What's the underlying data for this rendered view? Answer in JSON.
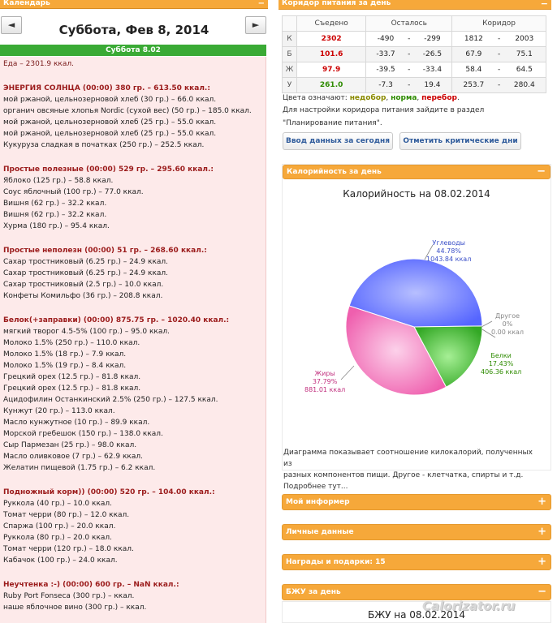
{
  "calendar": {
    "header": "Календарь",
    "collapse": "−",
    "prev": "◄",
    "next": "►",
    "date_title": "Суббота, Фев 8, 2014",
    "day_label": "Суббота 8.02"
  },
  "diary": {
    "total": "Еда – 2301.9 ккал.",
    "meals": [
      {
        "title": "ЭНЕРГИЯ СОЛНЦА (00:00) 380 гр. – 613.50 ккал.:",
        "items": [
          "мой ржаной, цельнозерновой хлеб (30 гр.) – 66.0 ккал.",
          "органич овсяные хлопья Nordic (сухой вес) (50 гр.) – 185.0 ккал.",
          "мой ржаной, цельнозерновой хлеб (25 гр.) – 55.0 ккал.",
          "мой ржаной, цельнозерновой хлеб (25 гр.) – 55.0 ккал.",
          "Кукуруза сладкая в початках (250 гр.) – 252.5 ккал."
        ]
      },
      {
        "title": "Простые полезные (00:00) 529 гр. – 295.60 ккал.:",
        "items": [
          "Яблоко (125 гр.) – 58.8 ккал.",
          "Соус яблочный (100 гр.) – 77.0 ккал.",
          "Вишня (62 гр.) – 32.2 ккал.",
          "Вишня (62 гр.) – 32.2 ккал.",
          "Хурма (180 гр.) – 95.4 ккал."
        ]
      },
      {
        "title": "Простые неполезн (00:00) 51 гр. – 268.60 ккал.:",
        "items": [
          "Сахар тростниковый (6.25 гр.) – 24.9 ккал.",
          "Сахар тростниковый (6.25 гр.) – 24.9 ккал.",
          "Сахар тростниковый (2.5 гр.) – 10.0 ккал.",
          "Конфеты Комильфо (36 гр.) – 208.8 ккал."
        ]
      },
      {
        "title": "Белок(+заправки) (00:00) 875.75 гр. – 1020.40 ккал.:",
        "items": [
          "мягкий творог 4.5-5% (100 гр.) – 95.0 ккал.",
          "Молоко 1.5% (250 гр.) – 110.0 ккал.",
          "Молоко 1.5% (18 гр.) – 7.9 ккал.",
          "Молоко 1.5% (19 гр.) – 8.4 ккал.",
          "Грецкий орех (12.5 гр.) – 81.8 ккал.",
          "Грецкий орех (12.5 гр.) – 81.8 ккал.",
          "Ацидофилин Останкинский 2.5% (250 гр.) – 127.5 ккал.",
          "Кунжут (20 гр.) – 113.0 ккал.",
          "Масло кунжутное (10 гр.) – 89.9 ккал.",
          "Морской гребешок (150 гр.) – 138.0 ккал.",
          "Сыр Пармезан (25 гр.) – 98.0 ккал.",
          "Масло оливковое (7 гр.) – 62.9 ккал.",
          "Желатин пищевой (1.75 гр.) – 6.2 ккал."
        ]
      },
      {
        "title": "Подножный корм)) (00:00) 520 гр. – 104.00 ккал.:",
        "items": [
          "Руккола (40 гр.) – 10.0 ккал.",
          "Томат черри (80 гр.) – 12.0 ккал.",
          "Спаржа (100 гр.) – 20.0 ккал.",
          "Руккола (80 гр.) – 20.0 ккал.",
          "Томат черри (120 гр.) – 18.0 ккал.",
          "Кабачок (100 гр.) – 24.0 ккал."
        ]
      },
      {
        "title": "Неучтенка :-) (00:00) 600 гр. – NaN ккал.:",
        "items": [
          "Ruby Port Fonseca (300 гр.) – ккал.",
          "наше яблочное вино (300 гр.) – ккал."
        ]
      }
    ]
  },
  "corridor": {
    "header": "Коридор питания за день",
    "collapse": "−",
    "columns": [
      "Съедено",
      "Осталось",
      "Коридор"
    ],
    "rows": [
      {
        "label": "К",
        "eaten": "2302",
        "color": "#cc0000",
        "rem_a": "-490",
        "rem_b": "-299",
        "cor_a": "1812",
        "cor_b": "2003"
      },
      {
        "label": "Б",
        "eaten": "101.6",
        "color": "#cc0000",
        "rem_a": "-33.7",
        "rem_b": "-26.5",
        "cor_a": "67.9",
        "cor_b": "75.1"
      },
      {
        "label": "Ж",
        "eaten": "97.9",
        "color": "#cc0000",
        "rem_a": "-39.5",
        "rem_b": "-33.4",
        "cor_a": "58.4",
        "cor_b": "64.5"
      },
      {
        "label": "У",
        "eaten": "261.0",
        "color": "#2e8b00",
        "rem_a": "-7.3",
        "rem_b": "19.4",
        "cor_a": "253.7",
        "cor_b": "280.4"
      }
    ],
    "dash": "-",
    "legend_prefix": "Цвета означают:",
    "legend_under": "недобор",
    "legend_sep": ",",
    "legend_norm": "норма",
    "legend_over": "перебор",
    "legend_end": ".",
    "legend_colors": {
      "under": "#8a8a00",
      "norm": "#2e8b00",
      "over": "#cc0000"
    },
    "settings_line1": "Для настройки коридора питания зайдите в раздел",
    "settings_line2": "\"Планирование питания\".",
    "btn_today": "Ввод данных за сегодня",
    "btn_critical": "Отметить критические дни"
  },
  "calories_panel": {
    "header": "Калорийность за день",
    "collapse": "−",
    "title": "Калорийность на 08.02.2014",
    "note_line1": "Диаграмма показывает соотношение килокалорий, полученных из",
    "note_line2": "разных компонентов пищи. Другое - клетчатка, спирты и т.д.",
    "note_line3": "Подробнее тут..."
  },
  "chart_data": {
    "type": "pie",
    "title": "Калорийность на 08.02.2014",
    "slices": [
      {
        "name": "Углеводы",
        "percent": "44.78%",
        "value": 1043.84,
        "value_label": "1043.84 ккал",
        "color": "#5a6cff"
      },
      {
        "name": "Белки",
        "percent": "17.43%",
        "value": 406.36,
        "value_label": "406.36 ккал",
        "color": "#3dae2b"
      },
      {
        "name": "Жиры",
        "percent": "37.79%",
        "value": 881.01,
        "value_label": "881.01 ккал",
        "color": "#f065b0"
      },
      {
        "name": "Другое",
        "percent": "0%",
        "value": 0,
        "value_label": "0.00 ккал",
        "color": "#999999"
      }
    ]
  },
  "collapsed_panels": [
    {
      "label": "Мой информер",
      "icon": "+"
    },
    {
      "label": "Личные данные",
      "icon": "+"
    },
    {
      "label": "Награды и подарки: 15",
      "icon": "+"
    }
  ],
  "bju_panel": {
    "header": "БЖУ за день",
    "collapse": "−",
    "title": "БЖУ на 08.02.2014"
  },
  "watermark": "Calorizator.ru"
}
